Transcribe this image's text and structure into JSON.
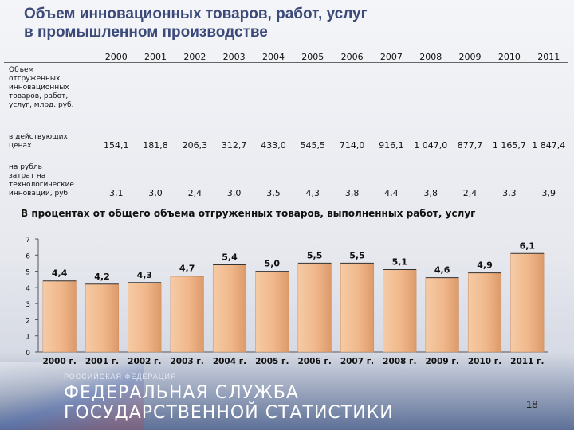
{
  "title": {
    "line1": "Объем инновационных товаров, работ, услуг",
    "line2": "в промышленном производстве"
  },
  "table": {
    "years": [
      "2000",
      "2001",
      "2002",
      "2003",
      "2004",
      "2005",
      "2006",
      "2007",
      "2008",
      "2009",
      "2010",
      "2011"
    ],
    "section_label": [
      "Объем",
      "отгруженных",
      "инновационных",
      "товаров, работ,",
      "услуг, млрд. руб."
    ],
    "rows": [
      {
        "label": [
          "в действующих",
          "ценах"
        ],
        "values": [
          "154,1",
          "181,8",
          "206,3",
          "312,7",
          "433,0",
          "545,5",
          "714,0",
          "916,1",
          "1 047,0",
          "877,7",
          "1 165,7",
          "1 847,4"
        ]
      },
      {
        "label": [
          "на рубль",
          "затрат на",
          "технологические",
          "инновации, руб."
        ],
        "values": [
          "3,1",
          "3,0",
          "2,4",
          "3,0",
          "3,5",
          "4,3",
          "3,8",
          "4,4",
          "3,8",
          "2,4",
          "3,3",
          "3,9"
        ]
      }
    ]
  },
  "chart_title": "В процентах от общего объема отгруженных товаров, выполненных работ, услуг",
  "chart_data": {
    "type": "bar",
    "categories": [
      "2000 г.",
      "2001 г.",
      "2002 г.",
      "2003 г.",
      "2004 г.",
      "2005 г.",
      "2006 г.",
      "2007 г.",
      "2008 г.",
      "2009 г.",
      "2010 г.",
      "2011 г."
    ],
    "values": [
      4.4,
      4.2,
      4.3,
      4.7,
      5.4,
      5.0,
      5.5,
      5.5,
      5.1,
      4.6,
      4.9,
      6.1
    ],
    "value_labels": [
      "4,4",
      "4,2",
      "4,3",
      "4,7",
      "5,4",
      "5,0",
      "5,5",
      "5,5",
      "5,1",
      "4,6",
      "4,9",
      "6,1"
    ],
    "yticks": [
      "0",
      "1",
      "2",
      "3",
      "4",
      "5",
      "6",
      "7"
    ],
    "ylim": [
      0,
      7
    ],
    "title": "",
    "xlabel": "",
    "ylabel": "",
    "grid": false,
    "bar_color": "#f0b78a"
  },
  "footer": {
    "small": "РОССИЙСКАЯ ФЕДЕРАЦИЯ",
    "line1": "ФЕДЕРАЛЬНАЯ СЛУЖБА",
    "line2": "ГОСУДАРСТВЕННОЙ СТАТИСТИКИ"
  },
  "page_number": "18"
}
